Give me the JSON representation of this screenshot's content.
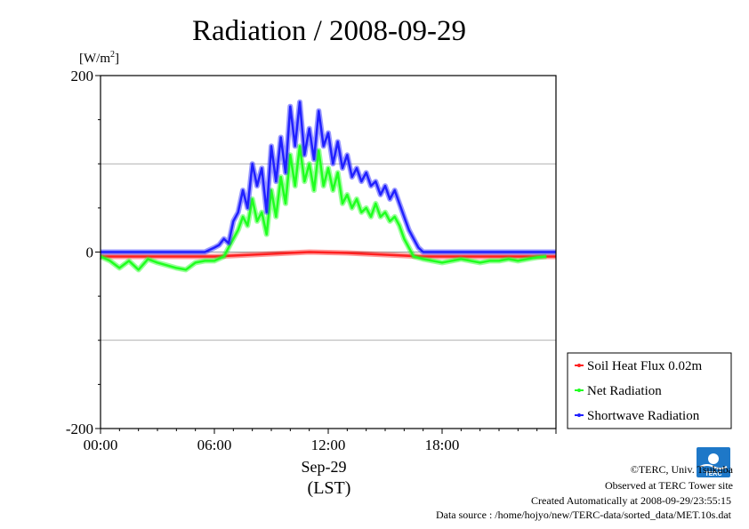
{
  "chart_data": {
    "type": "line",
    "title": "Radiation / 2008-09-29",
    "ylabel": "[W/m2]",
    "ylabel_base": "[W/m",
    "ylabel_sup": "2",
    "ylabel_end": "]",
    "ylim": [
      -200,
      200
    ],
    "xlim": [
      0,
      24
    ],
    "y_ticks": [
      {
        "value": 200,
        "label": "200"
      },
      {
        "value": 0,
        "label": "0"
      },
      {
        "value": -200,
        "label": "-200"
      }
    ],
    "y_grid": [
      100,
      -100
    ],
    "x_ticks": [
      {
        "value": 0,
        "label": "00:00"
      },
      {
        "value": 6,
        "label": "06:00"
      },
      {
        "value": 12,
        "label": "12:00"
      },
      {
        "value": 18,
        "label": "18:00"
      }
    ],
    "x_sublabel": "Sep-29",
    "xlabel": "(LST)",
    "grid": "horizontal",
    "legend_position": "bottom-right",
    "series": [
      {
        "name": "Soil Heat Flux 0.02m",
        "color": "#ff2020",
        "x": [
          0,
          1,
          2,
          3,
          4,
          5,
          6,
          7,
          8,
          9,
          10,
          11,
          12,
          13,
          14,
          15,
          16,
          17,
          18,
          19,
          20,
          21,
          22,
          23,
          24
        ],
        "y": [
          -5,
          -5,
          -5,
          -5,
          -5,
          -5,
          -5,
          -4,
          -3,
          -2,
          -1,
          0,
          -0.5,
          -1,
          -2,
          -3,
          -4,
          -5,
          -5,
          -5,
          -5,
          -5,
          -5,
          -5,
          -5
        ]
      },
      {
        "name": "Net Radiation",
        "color": "#20ff20",
        "x": [
          0,
          0.5,
          1,
          1.5,
          2,
          2.5,
          3,
          3.5,
          4,
          4.5,
          5,
          5.5,
          6,
          6.5,
          7,
          7.25,
          7.5,
          7.75,
          8,
          8.25,
          8.5,
          8.75,
          9,
          9.25,
          9.5,
          9.75,
          10,
          10.25,
          10.5,
          10.75,
          11,
          11.25,
          11.5,
          11.75,
          12,
          12.25,
          12.5,
          12.75,
          13,
          13.25,
          13.5,
          13.75,
          14,
          14.25,
          14.5,
          14.75,
          15,
          15.25,
          15.5,
          15.75,
          16,
          16.5,
          17,
          17.5,
          18,
          18.5,
          19,
          19.5,
          20,
          20.5,
          21,
          21.5,
          22,
          22.5,
          23,
          23.5
        ],
        "y": [
          -5,
          -10,
          -18,
          -10,
          -20,
          -8,
          -12,
          -15,
          -18,
          -20,
          -12,
          -10,
          -10,
          -5,
          15,
          25,
          40,
          30,
          60,
          35,
          45,
          20,
          70,
          40,
          85,
          55,
          110,
          75,
          120,
          80,
          100,
          70,
          115,
          75,
          95,
          70,
          90,
          55,
          65,
          50,
          60,
          45,
          50,
          40,
          55,
          40,
          45,
          35,
          40,
          30,
          15,
          -5,
          -8,
          -10,
          -12,
          -10,
          -8,
          -10,
          -12,
          -10,
          -10,
          -8,
          -10,
          -8,
          -6,
          -5
        ]
      },
      {
        "name": "Shortwave Radiation",
        "color": "#2020ff",
        "x": [
          0,
          1,
          2,
          3,
          4,
          5,
          5.5,
          6,
          6.25,
          6.5,
          6.75,
          7,
          7.25,
          7.5,
          7.75,
          8,
          8.25,
          8.5,
          8.75,
          9,
          9.25,
          9.5,
          9.75,
          10,
          10.25,
          10.5,
          10.75,
          11,
          11.25,
          11.5,
          11.75,
          12,
          12.25,
          12.5,
          12.75,
          13,
          13.25,
          13.5,
          13.75,
          14,
          14.25,
          14.5,
          14.75,
          15,
          15.25,
          15.5,
          15.75,
          16,
          16.25,
          16.5,
          16.75,
          17,
          18,
          19,
          20,
          21,
          22,
          23,
          24
        ],
        "y": [
          0,
          0,
          0,
          0,
          0,
          0,
          0,
          5,
          8,
          15,
          10,
          35,
          45,
          70,
          50,
          100,
          75,
          95,
          45,
          120,
          80,
          130,
          90,
          165,
          120,
          170,
          110,
          140,
          105,
          160,
          120,
          135,
          100,
          125,
          95,
          110,
          85,
          95,
          80,
          90,
          75,
          80,
          65,
          75,
          60,
          70,
          55,
          40,
          25,
          15,
          5,
          0,
          0,
          0,
          0,
          0,
          0,
          0,
          0
        ]
      }
    ]
  },
  "credits": {
    "copyright": "©TERC, Univ. Tsukuba",
    "observed": "Observed at TERC Tower site",
    "created": "Created Automatically at 2008-09-29/23:55:15",
    "source": "Data source : /home/hojyo/new/TERC-data/sorted_data/MET.10s.dat",
    "logo_text": "TERC"
  }
}
